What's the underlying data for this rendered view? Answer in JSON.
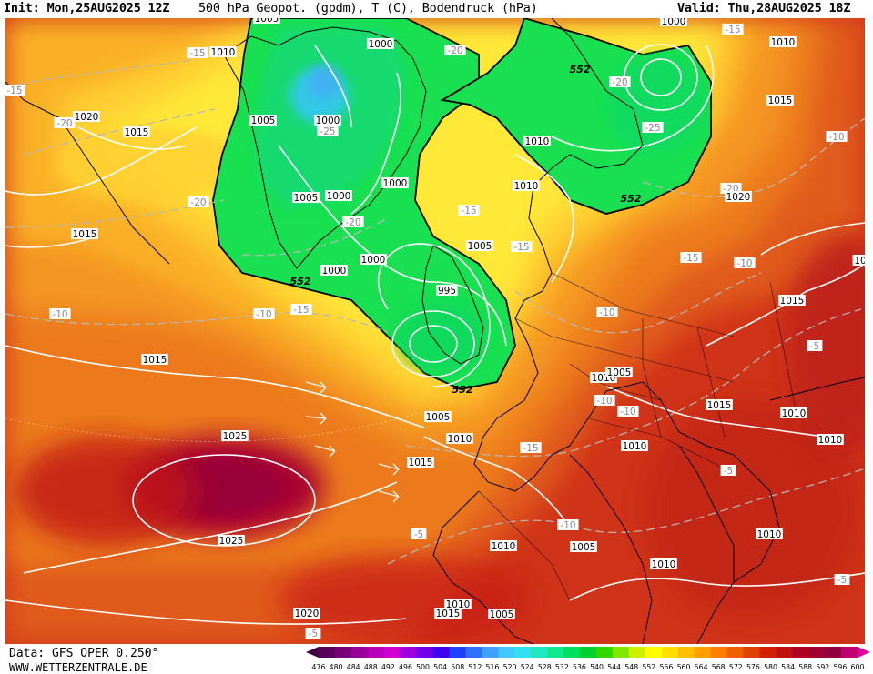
{
  "header": {
    "init": "Init: Mon,25AUG2025 12Z",
    "title": "500 hPa Geopot. (gpdm), T (C), Bodendruck (hPa)",
    "valid": "Valid: Thu,28AUG2025 18Z"
  },
  "footer": {
    "data_source": "Data: GFS OPER 0.250°",
    "website": "WWW.WETTERZENTRALE.DE"
  },
  "colorbar": {
    "ticks": [
      "476",
      "480",
      "484",
      "488",
      "492",
      "496",
      "500",
      "504",
      "508",
      "512",
      "516",
      "520",
      "524",
      "528",
      "532",
      "536",
      "540",
      "544",
      "548",
      "552",
      "556",
      "560",
      "564",
      "568",
      "572",
      "576",
      "580",
      "584",
      "588",
      "592",
      "596",
      "600"
    ],
    "colors": [
      "#5a005a",
      "#7a007a",
      "#9a009a",
      "#b800b8",
      "#d000d0",
      "#a000e0",
      "#7000e8",
      "#4000f0",
      "#2040ff",
      "#3070ff",
      "#40a0ff",
      "#40c8ff",
      "#30e0f0",
      "#20e8c0",
      "#10e890",
      "#00e060",
      "#00d030",
      "#30d800",
      "#80e800",
      "#d0f000",
      "#ffff00",
      "#ffe000",
      "#ffc000",
      "#ffa000",
      "#ff8000",
      "#f06000",
      "#e04000",
      "#d02000",
      "#c01010",
      "#b00020",
      "#a00030",
      "#900040",
      "#c00070"
    ],
    "left_arrow_color": "#400040",
    "right_arrow_color": "#e000a0"
  },
  "map": {
    "isobar_labels": [
      {
        "text": "1010",
        "x": 1245,
        "y": 57
      },
      {
        "text": "1005",
        "x": 1293,
        "y": 20
      },
      {
        "text": "1000",
        "x": 1418,
        "y": 48
      },
      {
        "text": "1000",
        "x": 1740,
        "y": 23
      },
      {
        "text": "1010",
        "x": 1860,
        "y": 46
      },
      {
        "text": "1015",
        "x": 1857,
        "y": 110
      },
      {
        "text": "1020",
        "x": 1811,
        "y": 216
      },
      {
        "text": "1020",
        "x": 1095,
        "y": 128
      },
      {
        "text": "1015",
        "x": 1150,
        "y": 145
      },
      {
        "text": "1005",
        "x": 1289,
        "y": 132
      },
      {
        "text": "1000",
        "x": 1360,
        "y": 132
      },
      {
        "text": "1005",
        "x": 1336,
        "y": 217
      },
      {
        "text": "1000",
        "x": 1372,
        "y": 215
      },
      {
        "text": "1000",
        "x": 1434,
        "y": 201
      },
      {
        "text": "1010",
        "x": 1590,
        "y": 155
      },
      {
        "text": "1010",
        "x": 1578,
        "y": 204
      },
      {
        "text": "1005",
        "x": 1527,
        "y": 270
      },
      {
        "text": "1000",
        "x": 1410,
        "y": 285
      },
      {
        "text": "1000",
        "x": 1367,
        "y": 297
      },
      {
        "text": "995",
        "x": 1491,
        "y": 319
      },
      {
        "text": "1015",
        "x": 1093,
        "y": 257
      },
      {
        "text": "1015",
        "x": 1870,
        "y": 330
      },
      {
        "text": "1015",
        "x": 1170,
        "y": 395
      },
      {
        "text": "1010",
        "x": 1663,
        "y": 415
      },
      {
        "text": "1005",
        "x": 1680,
        "y": 409
      },
      {
        "text": "1015",
        "x": 1790,
        "y": 445
      },
      {
        "text": "1010",
        "x": 1872,
        "y": 454
      },
      {
        "text": "1005",
        "x": 1481,
        "y": 458
      },
      {
        "text": "1010",
        "x": 1505,
        "y": 482
      },
      {
        "text": "1010",
        "x": 1697,
        "y": 490
      },
      {
        "text": "1010",
        "x": 1912,
        "y": 483
      },
      {
        "text": "1025",
        "x": 1258,
        "y": 479
      },
      {
        "text": "1015",
        "x": 1462,
        "y": 508
      },
      {
        "text": "1025",
        "x": 1254,
        "y": 594
      },
      {
        "text": "1010",
        "x": 1845,
        "y": 587
      },
      {
        "text": "1010",
        "x": 1553,
        "y": 600
      },
      {
        "text": "1005",
        "x": 1641,
        "y": 601
      },
      {
        "text": "1010",
        "x": 1729,
        "y": 620
      },
      {
        "text": "1020",
        "x": 1337,
        "y": 674
      },
      {
        "text": "1010",
        "x": 1503,
        "y": 664
      },
      {
        "text": "1015",
        "x": 1492,
        "y": 674
      },
      {
        "text": "1005",
        "x": 1551,
        "y": 675
      },
      {
        "text": "10",
        "x": 1945,
        "y": 286
      }
    ],
    "temp_labels": [
      {
        "text": "-15",
        "x": 1217,
        "y": 58
      },
      {
        "text": "-15",
        "x": 1016,
        "y": 99
      },
      {
        "text": "-20",
        "x": 1071,
        "y": 135
      },
      {
        "text": "-25",
        "x": 1360,
        "y": 144
      },
      {
        "text": "-20",
        "x": 1218,
        "y": 222
      },
      {
        "text": "-20",
        "x": 1388,
        "y": 244
      },
      {
        "text": "-15",
        "x": 1515,
        "y": 231
      },
      {
        "text": "-15",
        "x": 1573,
        "y": 271
      },
      {
        "text": "-20",
        "x": 1500,
        "y": 55
      },
      {
        "text": "-15",
        "x": 1805,
        "y": 32
      },
      {
        "text": "-20",
        "x": 1681,
        "y": 90
      },
      {
        "text": "-25",
        "x": 1717,
        "y": 140
      },
      {
        "text": "-10",
        "x": 1919,
        "y": 150
      },
      {
        "text": "-20",
        "x": 1803,
        "y": 207
      },
      {
        "text": "-15",
        "x": 1759,
        "y": 283
      },
      {
        "text": "-10",
        "x": 1818,
        "y": 289
      },
      {
        "text": "-15",
        "x": 1331,
        "y": 340
      },
      {
        "text": "-10",
        "x": 1290,
        "y": 345
      },
      {
        "text": "-10",
        "x": 1066,
        "y": 345
      },
      {
        "text": "-10",
        "x": 1667,
        "y": 343
      },
      {
        "text": "-5",
        "x": 1895,
        "y": 380
      },
      {
        "text": "-10",
        "x": 1664,
        "y": 440
      },
      {
        "text": "-10",
        "x": 1690,
        "y": 452
      },
      {
        "text": "-15",
        "x": 1583,
        "y": 492
      },
      {
        "text": "-5",
        "x": 1800,
        "y": 517
      },
      {
        "text": "-10",
        "x": 1624,
        "y": 577
      },
      {
        "text": "-5",
        "x": 1460,
        "y": 587
      },
      {
        "text": "-5",
        "x": 1925,
        "y": 637
      },
      {
        "text": "-5",
        "x": 1344,
        "y": 696
      }
    ],
    "gph_labels": [
      {
        "text": "552",
        "x": 1637,
        "y": 76
      },
      {
        "text": "552",
        "x": 1693,
        "y": 218
      },
      {
        "text": "552",
        "x": 1330,
        "y": 309
      },
      {
        "text": "552",
        "x": 1508,
        "y": 428
      }
    ]
  }
}
